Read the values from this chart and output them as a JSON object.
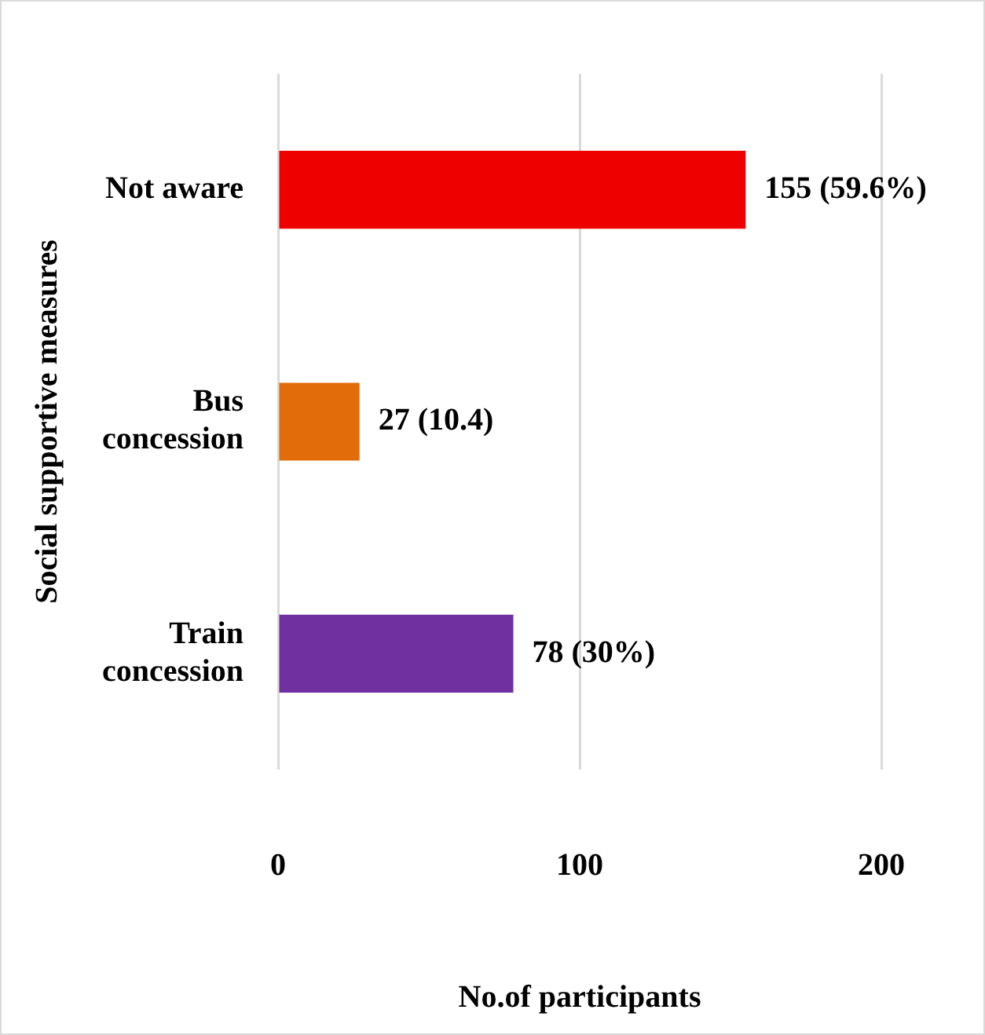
{
  "chart_data": {
    "type": "bar",
    "orientation": "horizontal",
    "categories": [
      "Not aware",
      "Bus concession",
      "Train concession"
    ],
    "values": [
      155,
      27,
      78
    ],
    "colors": [
      "#ee0000",
      "#e36c0a",
      "#7030a0"
    ],
    "value_labels": [
      "155 (59.6%)",
      "27 (10.4)",
      "78 (30%)"
    ],
    "xlim": [
      0,
      200
    ],
    "xticks": [
      0,
      100,
      200
    ],
    "grid": "x",
    "xlabel": "No.of participants",
    "ylabel": "Social supportive measures",
    "legend": false
  }
}
